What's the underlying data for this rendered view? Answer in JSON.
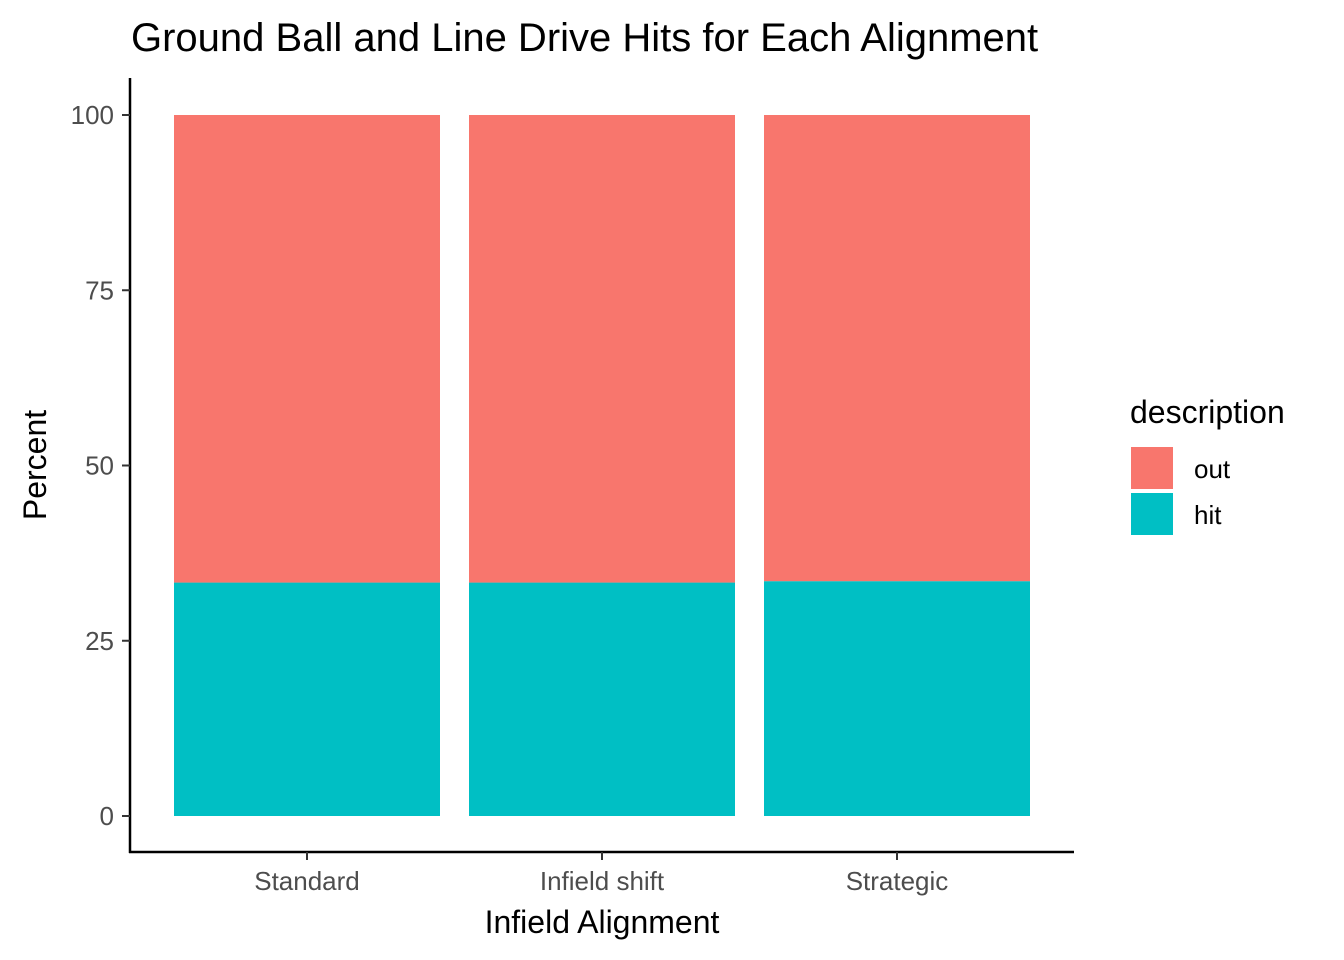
{
  "chart_data": {
    "type": "bar",
    "stacked": true,
    "title": "Ground Ball and Line Drive Hits for Each Alignment",
    "xlabel": "Infield Alignment",
    "ylabel": "Percent",
    "categories": [
      "Standard",
      "Infield shift",
      "Strategic"
    ],
    "series": [
      {
        "name": "hit",
        "color": "#00BFC4",
        "values": [
          33.3,
          33.3,
          33.5
        ]
      },
      {
        "name": "out",
        "color": "#F8766D",
        "values": [
          66.7,
          66.7,
          66.5
        ]
      }
    ],
    "ylim": [
      0,
      100
    ],
    "yticks": [
      0,
      25,
      50,
      75,
      100
    ],
    "legend": {
      "title": "description",
      "placement": "right",
      "order": [
        "out",
        "hit"
      ]
    },
    "grid": false
  }
}
